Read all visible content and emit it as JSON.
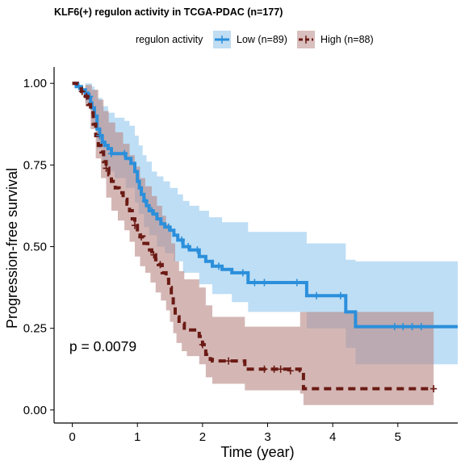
{
  "chart_data": {
    "type": "kaplan-meier",
    "title": "KLF6(+) regulon activity in TCGA-PDAC (n=177)",
    "legend": {
      "title": "regulon activity",
      "placement": "top-center",
      "entries": [
        {
          "name": "Low (n=89)",
          "color": "#2B8FDB",
          "band_color": "#93C8EE",
          "dash": "solid"
        },
        {
          "name": "High (n=88)",
          "color": "#6B1A14",
          "band_color": "#B98A88",
          "dash": "dashed"
        }
      ]
    },
    "xlabel": "Time (year)",
    "ylabel": "Progression-free survival",
    "xlim": [
      -0.28,
      5.92
    ],
    "ylim": [
      -0.04,
      1.05
    ],
    "x_ticks": [
      0,
      1,
      2,
      3,
      4,
      5
    ],
    "x_tick_labels": [
      "0",
      "1",
      "2",
      "3",
      "4",
      "5"
    ],
    "y_ticks": [
      0,
      0.25,
      0.5,
      0.75,
      1.0
    ],
    "y_tick_labels": [
      "0.00",
      "0.25",
      "0.50",
      "0.75",
      "1.00"
    ],
    "annotation": {
      "text": "p = 0.0079",
      "x": 0.55,
      "y": 0.19
    },
    "series": [
      {
        "name": "Low (n=89)",
        "steps": [
          [
            0,
            1.0
          ],
          [
            0.06,
            0.99
          ],
          [
            0.14,
            0.98
          ],
          [
            0.2,
            0.97
          ],
          [
            0.24,
            0.955
          ],
          [
            0.28,
            0.94
          ],
          [
            0.3,
            0.925
          ],
          [
            0.34,
            0.9
          ],
          [
            0.38,
            0.86
          ],
          [
            0.42,
            0.84
          ],
          [
            0.46,
            0.82
          ],
          [
            0.5,
            0.81
          ],
          [
            0.55,
            0.8
          ],
          [
            0.6,
            0.785
          ],
          [
            0.82,
            0.77
          ],
          [
            0.9,
            0.755
          ],
          [
            0.96,
            0.73
          ],
          [
            1.0,
            0.7
          ],
          [
            1.03,
            0.68
          ],
          [
            1.06,
            0.66
          ],
          [
            1.1,
            0.64
          ],
          [
            1.14,
            0.625
          ],
          [
            1.18,
            0.61
          ],
          [
            1.24,
            0.6
          ],
          [
            1.3,
            0.585
          ],
          [
            1.36,
            0.57
          ],
          [
            1.42,
            0.56
          ],
          [
            1.5,
            0.55
          ],
          [
            1.56,
            0.535
          ],
          [
            1.62,
            0.52
          ],
          [
            1.7,
            0.5
          ],
          [
            1.8,
            0.49
          ],
          [
            1.95,
            0.47
          ],
          [
            2.05,
            0.455
          ],
          [
            2.15,
            0.44
          ],
          [
            2.3,
            0.43
          ],
          [
            2.45,
            0.42
          ],
          [
            2.7,
            0.39
          ],
          [
            3.6,
            0.35
          ],
          [
            4.2,
            0.3
          ],
          [
            4.35,
            0.255
          ],
          [
            5.92,
            0.255
          ]
        ],
        "upper": [
          [
            0,
            1.0
          ],
          [
            0.2,
            1.0
          ],
          [
            0.3,
            0.99
          ],
          [
            0.34,
            0.98
          ],
          [
            0.38,
            0.955
          ],
          [
            0.46,
            0.93
          ],
          [
            0.55,
            0.91
          ],
          [
            0.65,
            0.895
          ],
          [
            0.8,
            0.885
          ],
          [
            0.88,
            0.87
          ],
          [
            0.96,
            0.84
          ],
          [
            1.02,
            0.81
          ],
          [
            1.08,
            0.78
          ],
          [
            1.14,
            0.76
          ],
          [
            1.22,
            0.73
          ],
          [
            1.3,
            0.715
          ],
          [
            1.4,
            0.7
          ],
          [
            1.5,
            0.68
          ],
          [
            1.62,
            0.66
          ],
          [
            1.7,
            0.64
          ],
          [
            1.8,
            0.625
          ],
          [
            1.95,
            0.61
          ],
          [
            2.1,
            0.59
          ],
          [
            2.3,
            0.575
          ],
          [
            2.7,
            0.545
          ],
          [
            3.6,
            0.51
          ],
          [
            4.2,
            0.46
          ],
          [
            4.35,
            0.455
          ],
          [
            5.92,
            0.455
          ]
        ],
        "lower": [
          [
            0,
            1.0
          ],
          [
            0.2,
            0.94
          ],
          [
            0.3,
            0.88
          ],
          [
            0.38,
            0.8
          ],
          [
            0.46,
            0.76
          ],
          [
            0.55,
            0.73
          ],
          [
            0.65,
            0.71
          ],
          [
            0.82,
            0.68
          ],
          [
            0.96,
            0.635
          ],
          [
            1.02,
            0.6
          ],
          [
            1.1,
            0.56
          ],
          [
            1.18,
            0.535
          ],
          [
            1.3,
            0.5
          ],
          [
            1.42,
            0.48
          ],
          [
            1.56,
            0.455
          ],
          [
            1.7,
            0.42
          ],
          [
            1.95,
            0.385
          ],
          [
            2.15,
            0.355
          ],
          [
            2.45,
            0.33
          ],
          [
            2.7,
            0.3
          ],
          [
            3.6,
            0.25
          ],
          [
            4.2,
            0.19
          ],
          [
            4.35,
            0.14
          ],
          [
            5.92,
            0.14
          ]
        ],
        "censors": [
          [
            0.1,
            0.99
          ],
          [
            0.27,
            0.96
          ],
          [
            0.42,
            0.84
          ],
          [
            0.6,
            0.785
          ],
          [
            0.8,
            0.785
          ],
          [
            1.12,
            0.64
          ],
          [
            1.22,
            0.61
          ],
          [
            1.48,
            0.56
          ],
          [
            1.68,
            0.52
          ],
          [
            1.78,
            0.5
          ],
          [
            1.92,
            0.49
          ],
          [
            2.25,
            0.44
          ],
          [
            2.62,
            0.42
          ],
          [
            2.8,
            0.39
          ],
          [
            2.95,
            0.39
          ],
          [
            3.45,
            0.39
          ],
          [
            3.75,
            0.35
          ],
          [
            4.12,
            0.35
          ],
          [
            4.95,
            0.255
          ],
          [
            5.08,
            0.255
          ],
          [
            5.22,
            0.255
          ],
          [
            5.36,
            0.255
          ]
        ]
      },
      {
        "name": "High (n=88)",
        "steps": [
          [
            0,
            1.0
          ],
          [
            0.08,
            0.985
          ],
          [
            0.14,
            0.975
          ],
          [
            0.2,
            0.96
          ],
          [
            0.24,
            0.935
          ],
          [
            0.28,
            0.91
          ],
          [
            0.32,
            0.875
          ],
          [
            0.36,
            0.84
          ],
          [
            0.4,
            0.81
          ],
          [
            0.44,
            0.79
          ],
          [
            0.48,
            0.76
          ],
          [
            0.52,
            0.74
          ],
          [
            0.56,
            0.72
          ],
          [
            0.6,
            0.7
          ],
          [
            0.66,
            0.68
          ],
          [
            0.72,
            0.665
          ],
          [
            0.78,
            0.645
          ],
          [
            0.84,
            0.63
          ],
          [
            0.88,
            0.61
          ],
          [
            0.92,
            0.585
          ],
          [
            0.96,
            0.565
          ],
          [
            1.0,
            0.545
          ],
          [
            1.04,
            0.53
          ],
          [
            1.1,
            0.51
          ],
          [
            1.16,
            0.49
          ],
          [
            1.22,
            0.475
          ],
          [
            1.28,
            0.46
          ],
          [
            1.32,
            0.445
          ],
          [
            1.38,
            0.42
          ],
          [
            1.44,
            0.4
          ],
          [
            1.48,
            0.375
          ],
          [
            1.52,
            0.345
          ],
          [
            1.55,
            0.315
          ],
          [
            1.58,
            0.285
          ],
          [
            1.64,
            0.265
          ],
          [
            1.72,
            0.245
          ],
          [
            1.95,
            0.225
          ],
          [
            2.0,
            0.2
          ],
          [
            2.05,
            0.17
          ],
          [
            2.12,
            0.155
          ],
          [
            2.15,
            0.15
          ],
          [
            2.65,
            0.125
          ],
          [
            3.5,
            0.12
          ],
          [
            3.55,
            0.065
          ],
          [
            5.55,
            0.065
          ]
        ],
        "upper": [
          [
            0,
            1.0
          ],
          [
            0.2,
            0.995
          ],
          [
            0.3,
            0.98
          ],
          [
            0.4,
            0.95
          ],
          [
            0.48,
            0.915
          ],
          [
            0.56,
            0.88
          ],
          [
            0.66,
            0.85
          ],
          [
            0.78,
            0.815
          ],
          [
            0.88,
            0.78
          ],
          [
            0.96,
            0.745
          ],
          [
            1.04,
            0.71
          ],
          [
            1.12,
            0.685
          ],
          [
            1.22,
            0.655
          ],
          [
            1.3,
            0.625
          ],
          [
            1.38,
            0.595
          ],
          [
            1.44,
            0.57
          ],
          [
            1.48,
            0.545
          ],
          [
            1.52,
            0.51
          ],
          [
            1.58,
            0.455
          ],
          [
            1.64,
            0.425
          ],
          [
            1.72,
            0.4
          ],
          [
            1.95,
            0.375
          ],
          [
            2.05,
            0.32
          ],
          [
            2.15,
            0.285
          ],
          [
            2.65,
            0.255
          ],
          [
            3.5,
            0.3
          ],
          [
            3.55,
            0.3
          ],
          [
            5.55,
            0.3
          ]
        ],
        "lower": [
          [
            0,
            1.0
          ],
          [
            0.2,
            0.93
          ],
          [
            0.28,
            0.86
          ],
          [
            0.36,
            0.77
          ],
          [
            0.44,
            0.71
          ],
          [
            0.52,
            0.65
          ],
          [
            0.6,
            0.61
          ],
          [
            0.7,
            0.58
          ],
          [
            0.8,
            0.55
          ],
          [
            0.88,
            0.515
          ],
          [
            0.96,
            0.47
          ],
          [
            1.04,
            0.44
          ],
          [
            1.12,
            0.42
          ],
          [
            1.2,
            0.39
          ],
          [
            1.28,
            0.36
          ],
          [
            1.36,
            0.335
          ],
          [
            1.44,
            0.305
          ],
          [
            1.5,
            0.27
          ],
          [
            1.55,
            0.235
          ],
          [
            1.6,
            0.205
          ],
          [
            1.68,
            0.18
          ],
          [
            1.76,
            0.165
          ],
          [
            1.95,
            0.14
          ],
          [
            2.05,
            0.1
          ],
          [
            2.15,
            0.08
          ],
          [
            2.65,
            0.06
          ],
          [
            3.5,
            0.05
          ],
          [
            3.55,
            0.015
          ],
          [
            5.55,
            0.015
          ]
        ],
        "censors": [
          [
            0.15,
            0.975
          ],
          [
            0.22,
            0.96
          ],
          [
            0.52,
            0.74
          ],
          [
            0.96,
            0.565
          ],
          [
            1.06,
            0.53
          ],
          [
            1.25,
            0.475
          ],
          [
            1.35,
            0.445
          ],
          [
            2.0,
            0.2
          ],
          [
            2.4,
            0.15
          ],
          [
            2.95,
            0.125
          ],
          [
            3.1,
            0.125
          ],
          [
            3.2,
            0.125
          ],
          [
            3.35,
            0.12
          ],
          [
            5.55,
            0.065
          ]
        ]
      }
    ]
  }
}
